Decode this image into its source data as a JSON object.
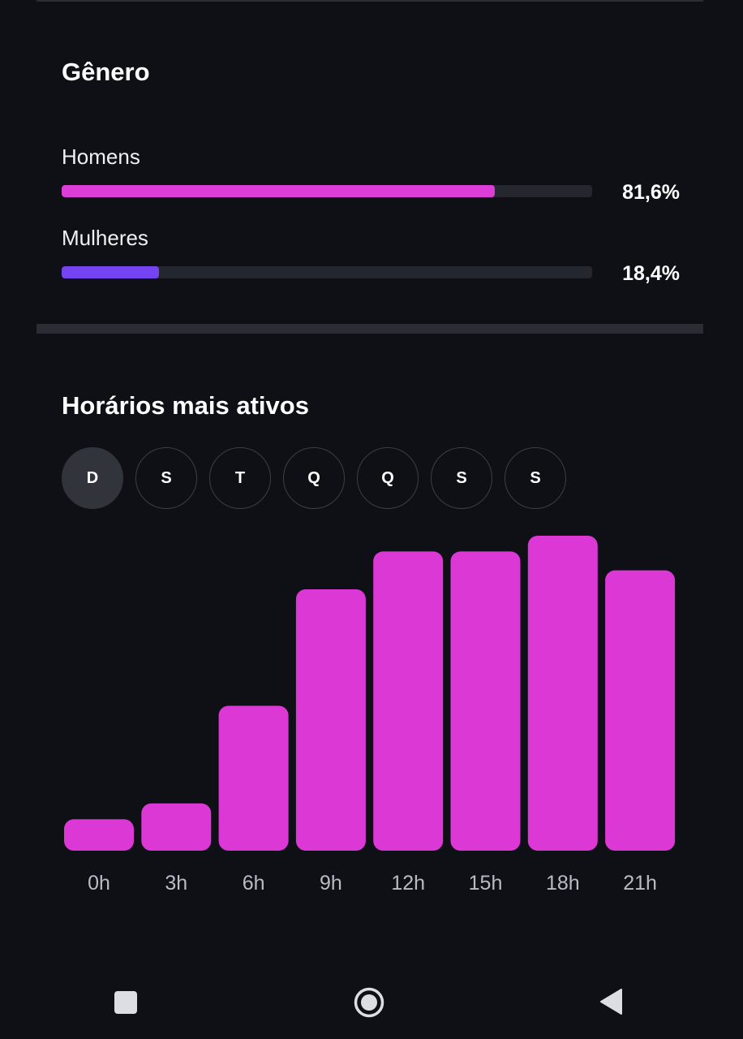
{
  "gender": {
    "title": "Gênero",
    "men": {
      "label": "Homens",
      "percent_text": "81,6%",
      "value": 81.6,
      "color": "#dd3dd7"
    },
    "women": {
      "label": "Mulheres",
      "percent_text": "18,4%",
      "value": 18.4,
      "color": "#7443f2"
    }
  },
  "active_hours": {
    "title": "Horários mais ativos",
    "days": [
      "D",
      "S",
      "T",
      "Q",
      "Q",
      "S",
      "S"
    ],
    "selected_day_index": 0
  },
  "chart_data": {
    "type": "bar",
    "categories": [
      "0h",
      "3h",
      "6h",
      "9h",
      "12h",
      "15h",
      "18h",
      "21h"
    ],
    "values": [
      10,
      15,
      46,
      83,
      95,
      95,
      100,
      89
    ],
    "ylim": [
      0,
      100
    ],
    "grid": false,
    "color": "#dc38d5"
  },
  "nav": {
    "icons": [
      "recent-apps-icon",
      "home-icon",
      "back-icon"
    ]
  }
}
